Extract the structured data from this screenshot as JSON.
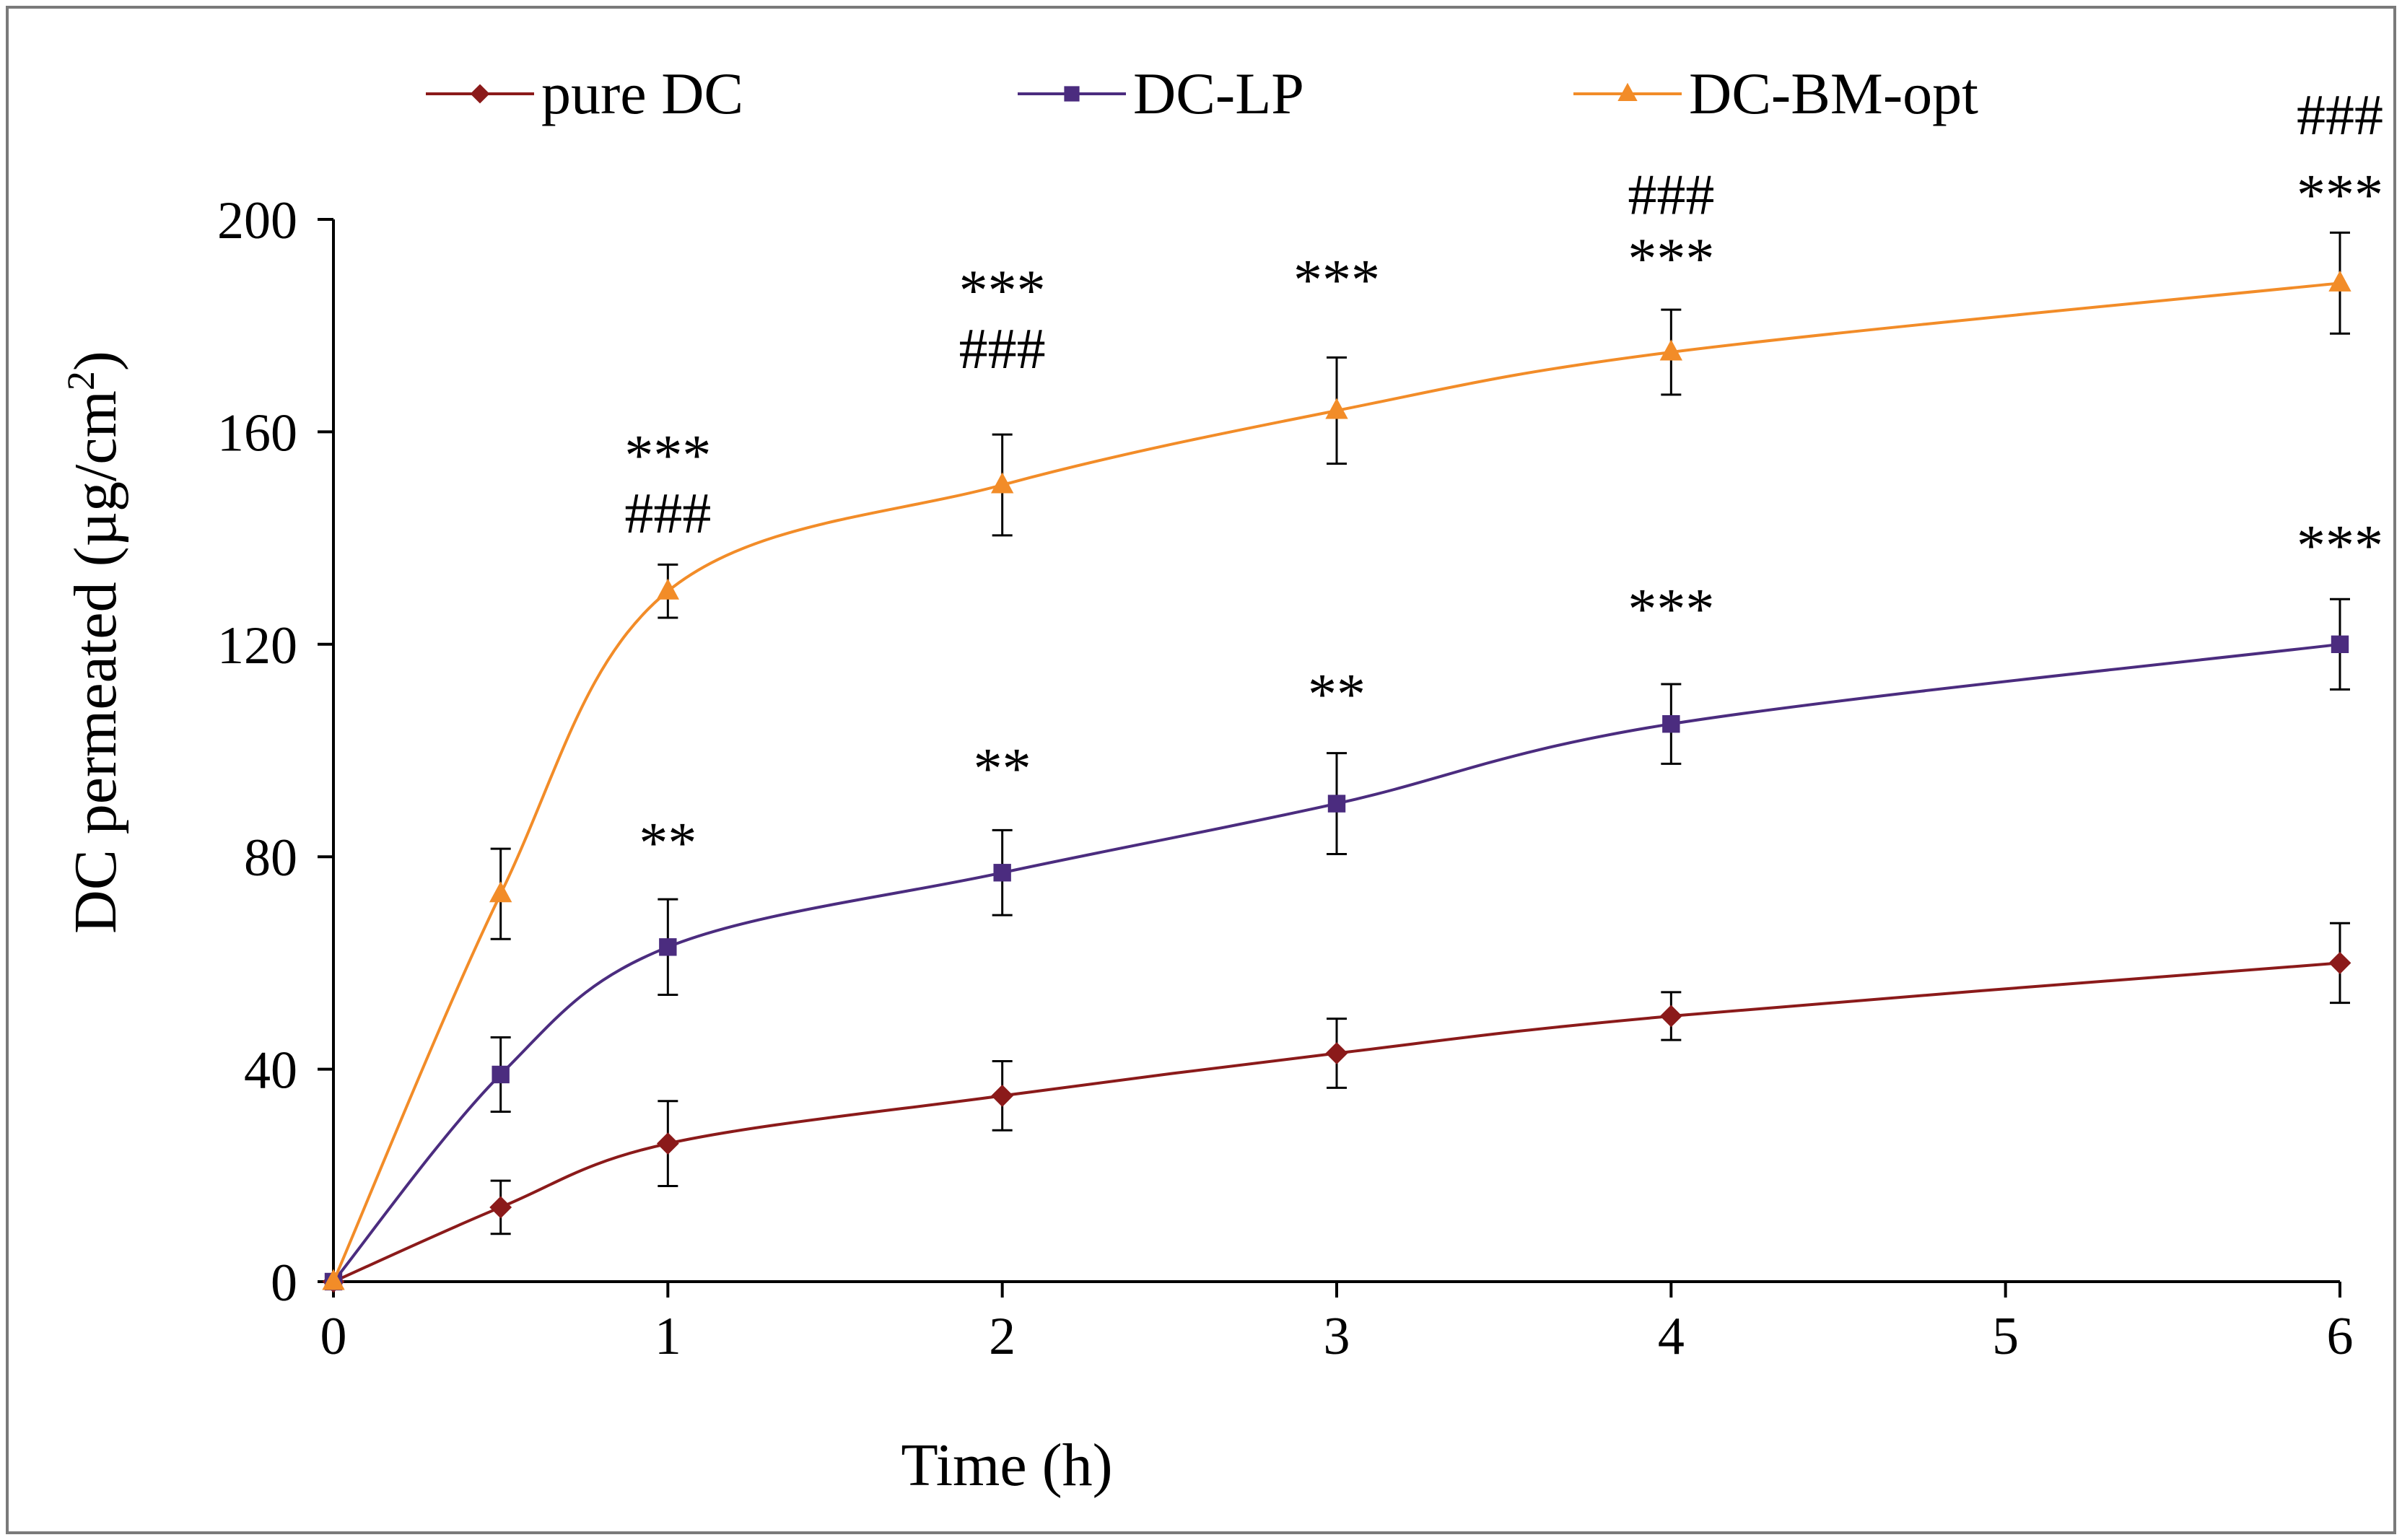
{
  "chart_data": {
    "type": "line",
    "xlabel": "Time (h)",
    "ylabel_prefix": "DC permeated  (µg/cm",
    "ylabel_sup": "2",
    "ylabel_suffix": ")",
    "xlim": [
      0,
      6
    ],
    "ylim": [
      0,
      200
    ],
    "xticks": [
      0,
      1,
      2,
      3,
      4,
      5,
      6
    ],
    "yticks": [
      0,
      40,
      80,
      120,
      160,
      200
    ],
    "grid": false,
    "legend_position": "top",
    "x": [
      0,
      0.5,
      1,
      2,
      3,
      4,
      6
    ],
    "series": [
      {
        "name": "pure DC",
        "color": "#8B1A1A",
        "marker": "diamond",
        "values": [
          0,
          14,
          26,
          35,
          43,
          50,
          60
        ],
        "errors": [
          0,
          5,
          8,
          6.5,
          6.5,
          4.5,
          7.5
        ]
      },
      {
        "name": "DC-LP",
        "color": "#4B2C7F",
        "marker": "square",
        "values": [
          0,
          39,
          63,
          77,
          90,
          105,
          120
        ],
        "errors": [
          0,
          7,
          9,
          8,
          9.5,
          7.5,
          8.5
        ]
      },
      {
        "name": "DC-BM-opt",
        "color": "#F28C28",
        "marker": "triangle",
        "values": [
          0,
          73,
          130,
          150,
          164,
          175,
          188
        ],
        "errors": [
          0,
          8.5,
          5,
          9.5,
          10,
          8,
          9.5
        ]
      }
    ],
    "annotations": [
      {
        "x": 1,
        "y": 152,
        "text": "***"
      },
      {
        "x": 1,
        "y": 141,
        "text": "###"
      },
      {
        "x": 2,
        "y": 183,
        "text": "***"
      },
      {
        "x": 2,
        "y": 172,
        "text": "###"
      },
      {
        "x": 3,
        "y": 185,
        "text": "***"
      },
      {
        "x": 4,
        "y": 189,
        "text": "***"
      },
      {
        "x": 4,
        "y": 201,
        "text": "###"
      },
      {
        "x": 6,
        "y": 201,
        "text": "***"
      },
      {
        "x": 6,
        "y": 216,
        "text": "###"
      },
      {
        "x": 1,
        "y": 79,
        "text": "**"
      },
      {
        "x": 2,
        "y": 93,
        "text": "**"
      },
      {
        "x": 3,
        "y": 107,
        "text": "**"
      },
      {
        "x": 4,
        "y": 123,
        "text": "***"
      },
      {
        "x": 6,
        "y": 135,
        "text": "***"
      }
    ]
  }
}
